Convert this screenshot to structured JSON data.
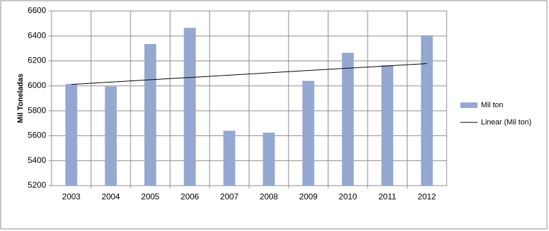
{
  "chart_data": {
    "type": "bar",
    "y_label": "Mil Toneladas",
    "categories": [
      "2003",
      "2004",
      "2005",
      "2006",
      "2007",
      "2008",
      "2009",
      "2010",
      "2011",
      "2012"
    ],
    "series": [
      {
        "name": "Mil ton",
        "color": "#95a8d2",
        "values": [
          6015,
          5995,
          6335,
          6465,
          5640,
          5625,
          6040,
          6265,
          6165,
          6405
        ]
      }
    ],
    "trendline": {
      "name": "Linear (Mil ton)",
      "color": "#000000",
      "kind": "linear"
    },
    "ylim": [
      5200,
      6600
    ],
    "yticks": [
      5200,
      5400,
      5600,
      5800,
      6000,
      6200,
      6400,
      6600
    ],
    "grid": true,
    "legend": "right"
  }
}
